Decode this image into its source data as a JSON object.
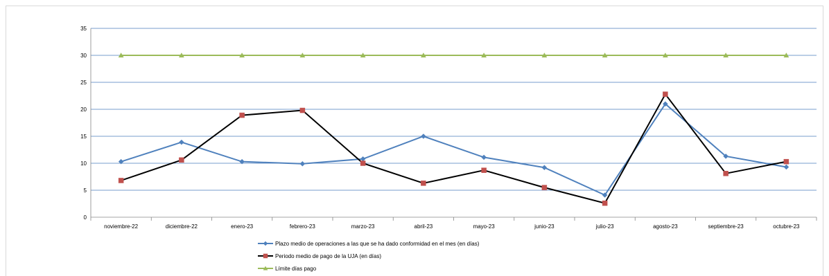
{
  "chart_data": {
    "type": "line",
    "categories": [
      "noviembre-22",
      "diciembre-22",
      "enero-23",
      "febrero-23",
      "marzo-23",
      "abril-23",
      "mayo-23",
      "junio-23",
      "julio-23",
      "agosto-23",
      "septiembre-23",
      "octubre-23"
    ],
    "ylim": [
      0,
      35
    ],
    "yticks": [
      0,
      5,
      10,
      15,
      20,
      25,
      30,
      35
    ],
    "grid": true,
    "legend_position": "bottom",
    "series": [
      {
        "name": "Plazo medio de operaciones a las que se ha dado conformidad en el mes (en días)",
        "color": "#4f81bd",
        "marker": "diamond",
        "values": [
          10.3,
          13.9,
          10.3,
          9.9,
          10.8,
          15.0,
          11.1,
          9.2,
          4.1,
          21.0,
          11.3,
          9.3
        ]
      },
      {
        "name": "Periodo medio de pago de la UJA (en días)",
        "color": "#000000",
        "marker_color": "#c0504d",
        "marker": "square",
        "values": [
          6.8,
          10.6,
          18.9,
          19.8,
          10.0,
          6.3,
          8.7,
          5.5,
          2.6,
          22.8,
          8.1,
          10.3
        ]
      },
      {
        "name": "Límite días pago",
        "color": "#9bbb59",
        "marker": "triangle",
        "values": [
          30,
          30,
          30,
          30,
          30,
          30,
          30,
          30,
          30,
          30,
          30,
          30
        ]
      }
    ]
  }
}
